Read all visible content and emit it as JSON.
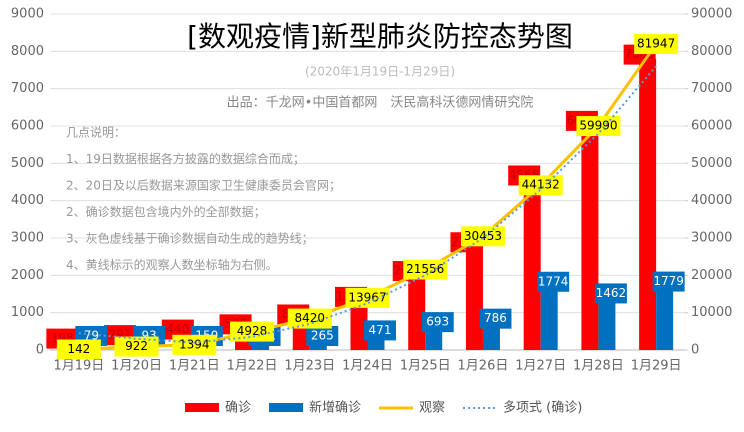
{
  "chart_data": {
    "type": "combo",
    "title": "[数观疫情]新型肺炎防控态势图",
    "subtitle": "(2020年1月19日-1月29日)",
    "source": "出品：千龙网•中国首都网　沃民高科沃德网情研究院",
    "notes": [
      "几点说明：",
      "1、19日数据根据各方披露的数据综合而成；",
      "2、20日及以后数据来源国家卫生健康委员会官网；",
      "2、确诊数据包含境内外的全部数据；",
      "3、灰色虚线基于确诊数据自动生成的趋势线；",
      "4、黄线标示的观察人数坐标轴为右侧。"
    ],
    "categories": [
      "1月19日",
      "1月20日",
      "1月21日",
      "1月22日",
      "1月23日",
      "1月24日",
      "1月25日",
      "1月26日",
      "1月27日",
      "1月28日",
      "1月29日"
    ],
    "series": [
      {
        "name": "确诊",
        "type": "bar",
        "color": "#ff0000",
        "values": [
          198,
          291,
          440,
          580,
          844,
          1315,
          2008,
          2779,
          4568,
          6030,
          7805
        ]
      },
      {
        "name": "新增确诊",
        "type": "bar",
        "color": "#0070c0",
        "values": [
          79,
          93,
          150,
          131,
          265,
          471,
          693,
          786,
          1774,
          1462,
          1779
        ]
      },
      {
        "name": "观察",
        "type": "line",
        "axis": "y2",
        "color": "#ffc000",
        "values": [
          142,
          922,
          1394,
          4928,
          8420,
          13967,
          21556,
          30453,
          44132,
          59990,
          81947
        ]
      },
      {
        "name": "多项式 (确诊)",
        "type": "line",
        "dotted": true,
        "color": "#5b9bd5",
        "values": [
          450,
          300,
          200,
          350,
          700,
          1250,
          2000,
          3000,
          4300,
          5800,
          7600
        ]
      }
    ],
    "ylim": [
      0,
      9000
    ],
    "yticks": [
      0,
      1000,
      2000,
      3000,
      4000,
      5000,
      6000,
      7000,
      8000,
      9000
    ],
    "y2lim": [
      0,
      90000
    ],
    "y2ticks": [
      0,
      10000,
      20000,
      30000,
      40000,
      50000,
      60000,
      70000,
      80000,
      90000
    ],
    "grid": true
  }
}
